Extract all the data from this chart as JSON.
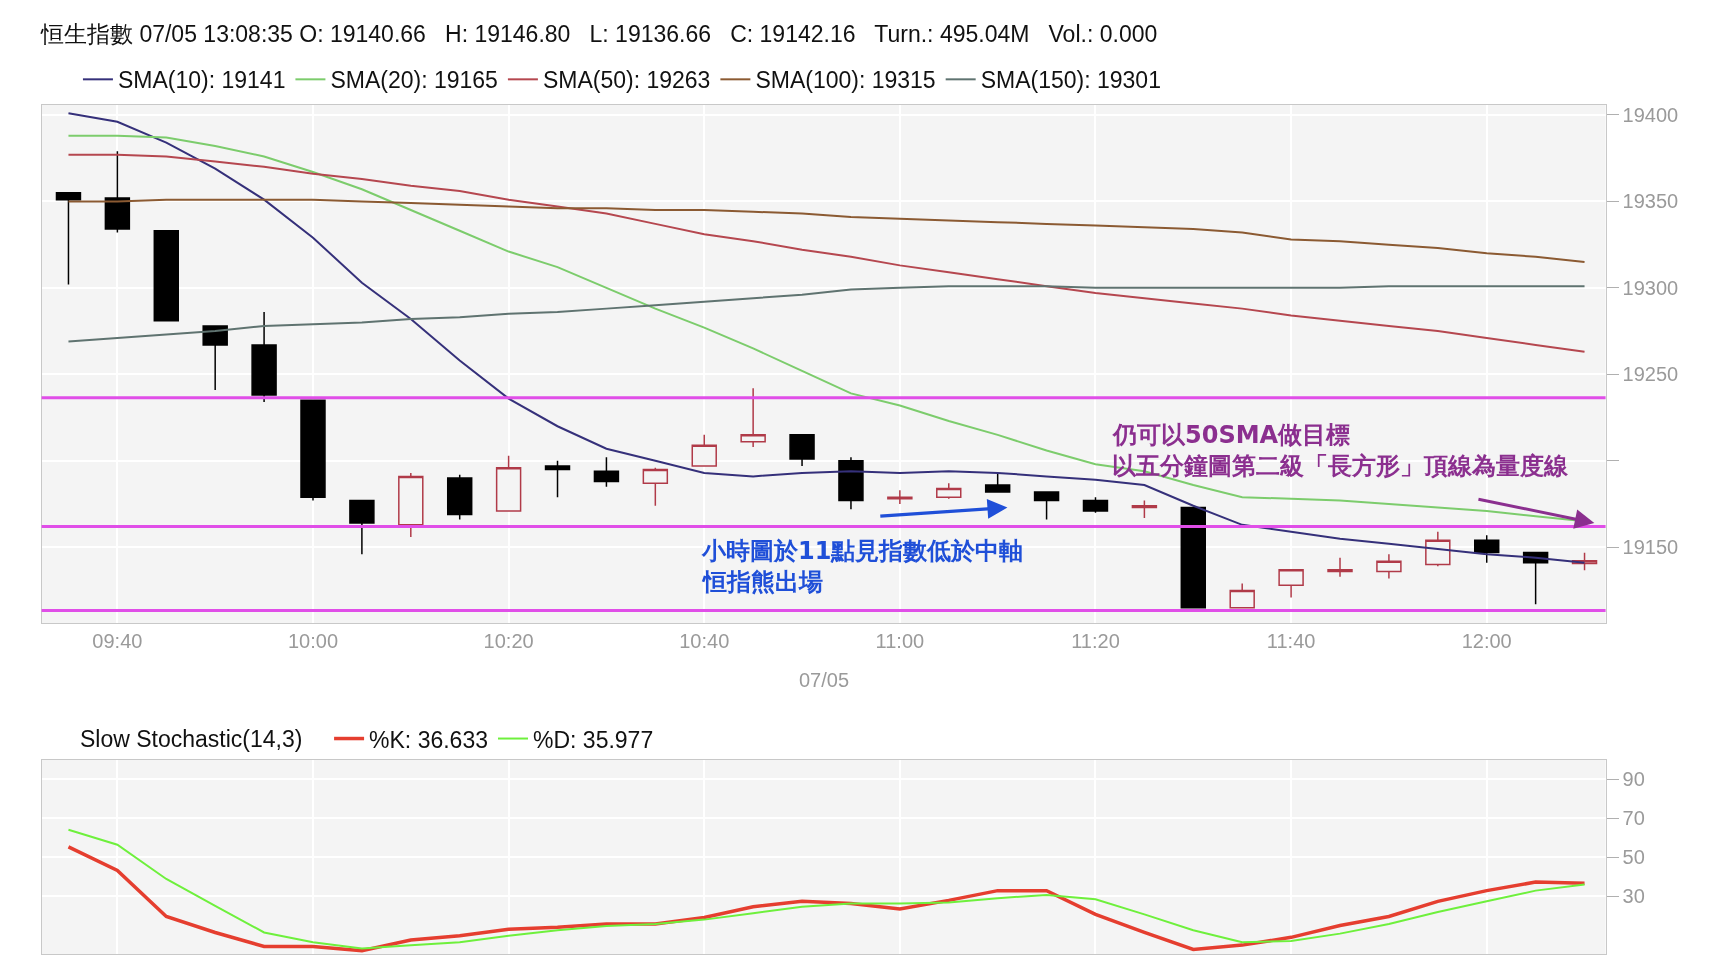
{
  "chart_data": [
    {
      "type": "candlestick",
      "title": "恒生指數 07/05 13:08:35 O: 19140.66   H: 19146.80   L: 19136.66   C: 19142.16   Turn.: 495.04M   Vol.: 0.000",
      "xlabel": "07/05",
      "categories": [
        null,
        "09:40",
        null,
        null,
        null,
        "10:00",
        null,
        null,
        null,
        "10:20",
        null,
        null,
        null,
        "10:40",
        null,
        null,
        null,
        "11:00",
        null,
        null,
        null,
        "11:20",
        null,
        null,
        null,
        "11:40",
        null,
        null,
        null,
        "12:00",
        null,
        null
      ],
      "ohlc": [
        [
          19355,
          19355,
          19302,
          19351
        ],
        [
          19352,
          19379,
          19332,
          19334
        ],
        [
          19333,
          19333,
          19281,
          19281
        ],
        [
          19278,
          19278,
          19241,
          19267
        ],
        [
          19267,
          19286,
          19234,
          19238
        ],
        [
          19235,
          19235,
          19177,
          19179
        ],
        [
          19177,
          19177,
          19146,
          19164
        ],
        [
          19163,
          19193,
          19156,
          19191
        ],
        [
          19190,
          19192,
          19166,
          19169
        ],
        [
          19171,
          19203,
          19171,
          19196
        ],
        [
          19197,
          19200,
          19179,
          19195
        ],
        [
          19194,
          19202,
          19185,
          19188
        ],
        [
          19187,
          19196,
          19174,
          19195
        ],
        [
          19197,
          19215,
          19197,
          19209
        ],
        [
          19211,
          19242,
          19208,
          19215
        ],
        [
          19215,
          19215,
          19197,
          19201
        ],
        [
          19200,
          19202,
          19172,
          19177
        ],
        [
          19178,
          19183,
          19175,
          19179
        ],
        [
          19179,
          19187,
          19178,
          19184
        ],
        [
          19186,
          19193,
          19182,
          19182
        ],
        [
          19182,
          19182,
          19166,
          19177
        ],
        [
          19177,
          19179,
          19170,
          19171
        ],
        [
          19173,
          19177,
          19167,
          19174
        ],
        [
          19173,
          19173,
          19115,
          19115
        ],
        [
          19115,
          19129,
          19115,
          19125
        ],
        [
          19128,
          19137,
          19121,
          19137
        ],
        [
          19136,
          19144,
          19133,
          19137
        ],
        [
          19136,
          19146,
          19132,
          19142
        ],
        [
          19140,
          19159,
          19139,
          19154
        ],
        [
          19154,
          19157,
          19141,
          19147
        ],
        [
          19147,
          19147,
          19117,
          19141
        ],
        [
          19140.66,
          19146.8,
          19136.66,
          19142.16
        ]
      ],
      "series": [
        {
          "name": "SMA(10): 19141",
          "type": "line",
          "color": "#35307a",
          "values": [
            19401,
            19396,
            19384,
            19369,
            19351,
            19329,
            19303,
            19282,
            19258,
            19236,
            19220,
            19207,
            19200,
            19193,
            19191,
            19193,
            19194,
            19193,
            19194,
            19193,
            19191,
            19189,
            19186,
            19174,
            19163,
            19159,
            19155,
            19152,
            19149,
            19146,
            19144,
            19141
          ]
        },
        {
          "name": "SMA(20): 19165",
          "type": "line",
          "color": "#7ccc6c",
          "values": [
            19388,
            19388,
            19387,
            19382,
            19376,
            19367,
            19357,
            19345,
            19333,
            19321,
            19312,
            19300,
            19288,
            19277,
            19265,
            19252,
            19239,
            19232,
            19223,
            19215,
            19206,
            19198,
            19194,
            19186,
            19179,
            19178,
            19177,
            19175,
            19173,
            19171,
            19168,
            19165
          ]
        },
        {
          "name": "SMA(50): 19263",
          "type": "line",
          "color": "#b5474f",
          "values": [
            19377,
            19377,
            19376,
            19373,
            19370,
            19366,
            19363,
            19359,
            19356,
            19351,
            19347,
            19343,
            19337,
            19331,
            19327,
            19322,
            19318,
            19313,
            19309,
            19305,
            19301,
            19297,
            19294,
            19291,
            19288,
            19284,
            19281,
            19278,
            19275,
            19271,
            19267,
            19263
          ]
        },
        {
          "name": "SMA(100): 19315",
          "type": "line",
          "color": "#8b5a32",
          "values": [
            19350,
            19350,
            19351,
            19351,
            19351,
            19351,
            19350,
            19349,
            19348,
            19347,
            19346,
            19346,
            19345,
            19345,
            19344,
            19343,
            19341,
            19340,
            19339,
            19338,
            19337,
            19336,
            19335,
            19334,
            19332,
            19328,
            19327,
            19325,
            19323,
            19320,
            19318,
            19315
          ]
        },
        {
          "name": "SMA(150): 19301",
          "type": "line",
          "color": "#5f7370",
          "values": [
            19269,
            19271,
            19273,
            19275,
            19278,
            19279,
            19280,
            19282,
            19283,
            19285,
            19286,
            19288,
            19290,
            19292,
            19294,
            19296,
            19299,
            19300,
            19301,
            19301,
            19301,
            19300,
            19300,
            19300,
            19300,
            19300,
            19300,
            19301,
            19301,
            19301,
            19301,
            19301
          ]
        }
      ],
      "ylim": [
        19106,
        19406
      ],
      "yticks": [
        19150,
        {
          "value": 19200,
          "label": null
        },
        19250,
        19300,
        19350,
        19400
      ],
      "grid": true,
      "legend": "top left",
      "ref_lines": [
        {
          "axis": "y",
          "value": 19236.5,
          "color": "#e04ee8"
        },
        {
          "axis": "y",
          "value": 19162,
          "color": "#e04ee8"
        },
        {
          "axis": "y",
          "value": 19113.5,
          "color": "#e04ee8"
        }
      ],
      "annotations": [
        "仍可以50SMA做目標",
        {
          "text": "以五分鐘圖第二級「長方形」頂線為量度線",
          "y": 19164
        },
        "小時圖於11點見指數低於中軸",
        "恒指熊出場"
      ]
    },
    {
      "type": "line",
      "title": "Slow Stochastic(14,3)",
      "categories": [
        null,
        null,
        null,
        null,
        null,
        null,
        null,
        null,
        null,
        null,
        null,
        null,
        null,
        null,
        null,
        null,
        null,
        null,
        null,
        null,
        null,
        null,
        null,
        null,
        null,
        null,
        null,
        null,
        null,
        null,
        null,
        null
      ],
      "series": [
        {
          "name": "%K: 36.633",
          "color": "#e53e2f",
          "values": [
            55.3,
            43.2,
            19.5,
            11.3,
            4.1,
            4.1,
            1.9,
            7.4,
            9.6,
            12.9,
            14,
            15.7,
            15.7,
            19,
            24.5,
            27.3,
            26.2,
            23.4,
            27.8,
            32.8,
            32.8,
            20.6,
            11.3,
            2.6,
            4.8,
            8.8,
            14.9,
            19.5,
            27.3,
            32.8,
            37.2,
            36.6
          ]
        },
        {
          "name": "%D: 35.977",
          "color": "#6ef03c",
          "values": [
            64.1,
            56.4,
            38.8,
            25,
            11.3,
            6.3,
            3,
            4.7,
            6.3,
            9.6,
            12.4,
            14.6,
            15.7,
            17.9,
            21.2,
            24.5,
            26.2,
            26.2,
            26.7,
            28.9,
            30.6,
            28.4,
            20.6,
            12.4,
            6.3,
            6.9,
            10.7,
            15.7,
            21.8,
            27.3,
            32.8,
            36
          ]
        }
      ],
      "ylim": [
        0,
        100
      ],
      "yticks": [
        30,
        50,
        70,
        90
      ],
      "tick_labels": "y",
      "grid": true,
      "legend": "top left"
    }
  ]
}
